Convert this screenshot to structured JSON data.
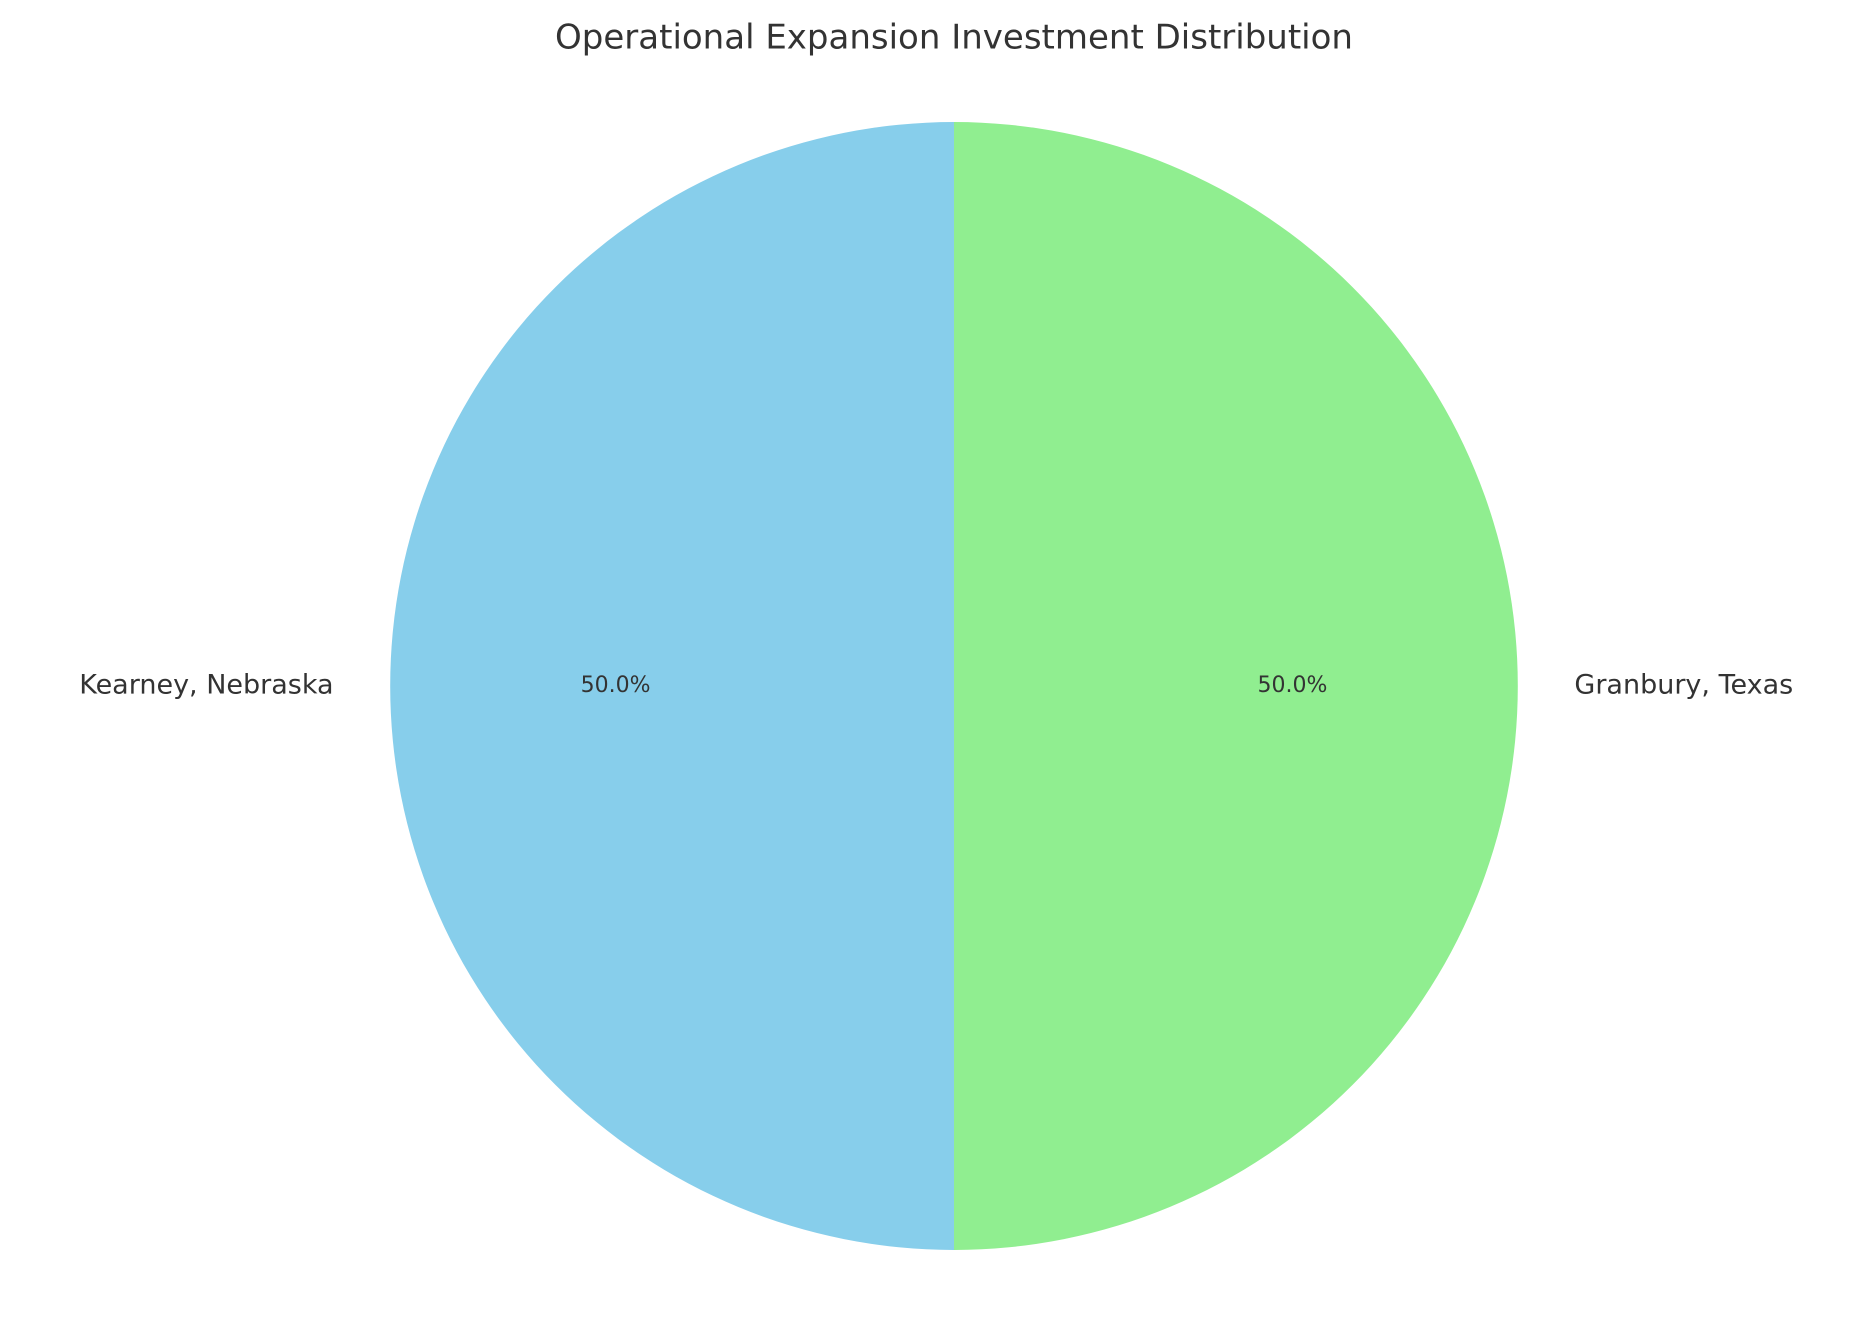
{
  "chart_data": {
    "type": "pie",
    "title": "Operational Expansion Investment Distribution",
    "categories": [
      "Kearney, Nebraska",
      "Granbury, Texas"
    ],
    "values": [
      50,
      50
    ],
    "value_labels": [
      "50.0%",
      "50.0%"
    ],
    "colors": [
      "#87ceeb",
      "#90ee90"
    ],
    "start_angle": 90
  }
}
